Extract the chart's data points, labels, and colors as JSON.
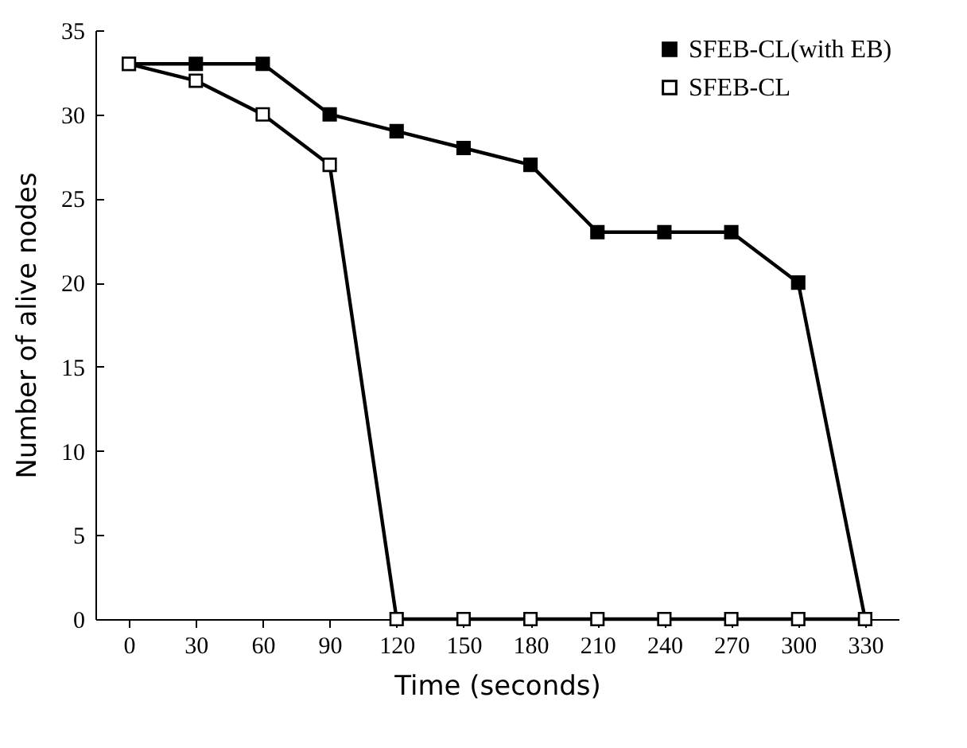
{
  "chart_data": {
    "type": "line",
    "xlabel": "Time (seconds)",
    "ylabel": "Number of alive nodes",
    "x": [
      0,
      30,
      60,
      90,
      120,
      150,
      180,
      210,
      240,
      270,
      300,
      330
    ],
    "series": [
      {
        "name": "SFEB-CL(with EB)",
        "color": "#000000",
        "values": [
          33,
          33,
          33,
          30,
          29,
          28,
          27,
          23,
          23,
          23,
          20,
          0
        ]
      },
      {
        "name": "SFEB-CL",
        "color": "#000000",
        "values": [
          33,
          32,
          30,
          27,
          0,
          0,
          0,
          0,
          0,
          0,
          0,
          0
        ]
      }
    ],
    "xlim": [
      -15,
      345
    ],
    "xticks": [
      0,
      30,
      60,
      90,
      120,
      150,
      180,
      210,
      240,
      270,
      300,
      330
    ],
    "ylim": [
      0,
      35
    ],
    "yticks": [
      0,
      5,
      10,
      15,
      20,
      25,
      30,
      35
    ],
    "grid": false,
    "legend": "top right",
    "marker": "square",
    "line_style": "solid"
  }
}
